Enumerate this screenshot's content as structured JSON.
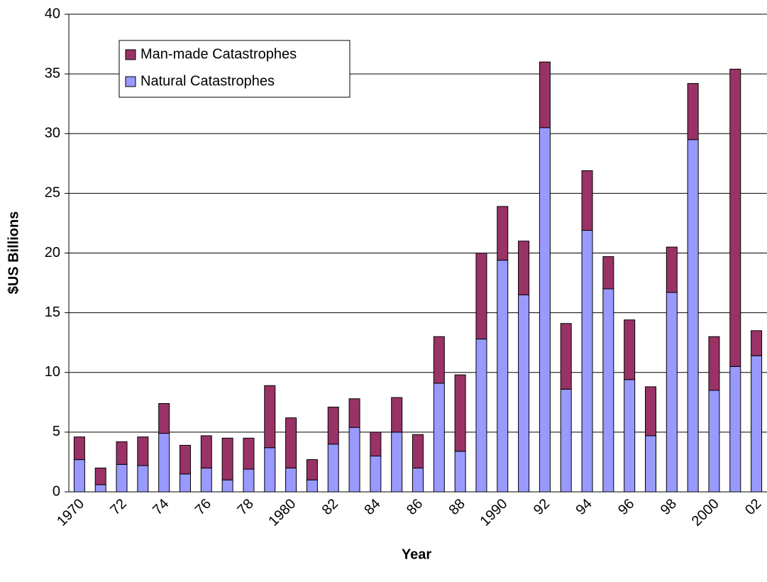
{
  "chart_data": {
    "type": "stacked-bar",
    "x_label": "Year",
    "y_label": "$US Billions",
    "categories": [
      "1970",
      null,
      "72",
      null,
      "74",
      null,
      "76",
      null,
      "78",
      null,
      "1980",
      null,
      "82",
      null,
      "84",
      null,
      "86",
      null,
      "88",
      null,
      "1990",
      null,
      "92",
      null,
      "94",
      null,
      "96",
      null,
      "98",
      null,
      "2000",
      null,
      "02"
    ],
    "series": [
      {
        "name": "Natural Catastrophes",
        "color": "#9999ff",
        "values": [
          2.7,
          0.6,
          2.3,
          2.2,
          4.9,
          1.5,
          2.0,
          1.0,
          1.9,
          3.7,
          2.0,
          1.0,
          4.0,
          5.4,
          3.0,
          5.0,
          2.0,
          9.1,
          3.4,
          12.8,
          19.4,
          16.5,
          30.5,
          8.6,
          21.9,
          17.0,
          9.4,
          4.7,
          16.7,
          29.5,
          8.5,
          10.5,
          11.4
        ]
      },
      {
        "name": "Man-made Catastrophes",
        "color": "#993366",
        "values": [
          1.9,
          1.4,
          1.9,
          2.4,
          2.5,
          2.4,
          2.7,
          3.5,
          2.6,
          5.2,
          4.2,
          1.7,
          3.1,
          2.4,
          2.0,
          2.9,
          2.8,
          3.9,
          6.4,
          7.2,
          4.5,
          4.5,
          5.5,
          5.5,
          5.0,
          2.7,
          5.0,
          4.1,
          3.8,
          4.7,
          4.5,
          24.9,
          2.1
        ]
      }
    ],
    "ylim": [
      0,
      40
    ],
    "yticks": [
      0,
      5,
      10,
      15,
      20,
      25,
      30,
      35,
      40
    ],
    "grid": true,
    "legend": "top-left"
  }
}
